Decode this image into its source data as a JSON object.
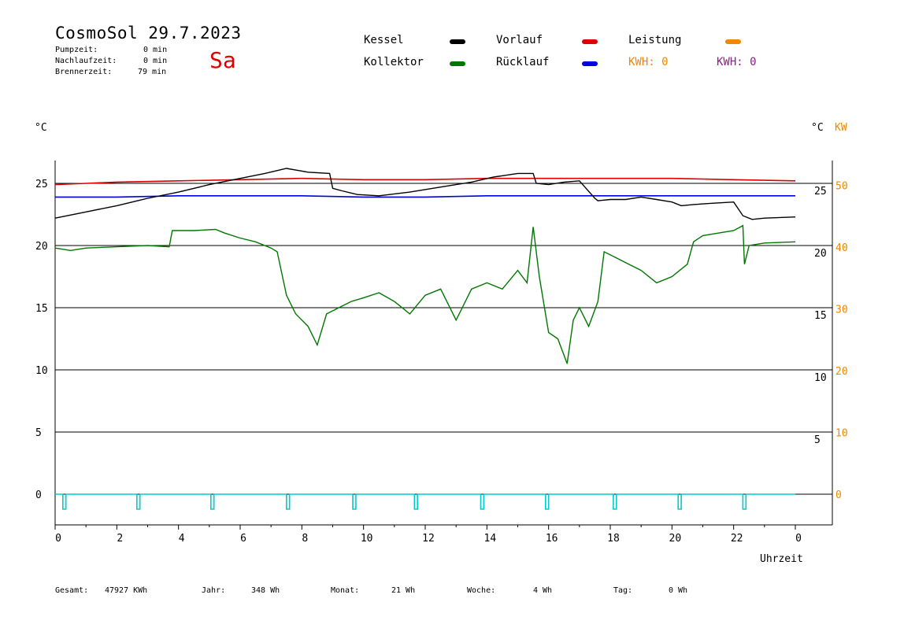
{
  "header": {
    "title": "CosmoSol 29.7.2023",
    "day": "Sa",
    "stats": [
      {
        "label": "Pumpzeit:",
        "value": "0 min"
      },
      {
        "label": "Nachlaufzeit:",
        "value": "0 min"
      },
      {
        "label": "Brennerzeit:",
        "value": "79 min"
      }
    ]
  },
  "legend": {
    "kessel": "Kessel",
    "kollektor": "Kollektor",
    "vorlauf": "Vorlauf",
    "ruecklauf": "Rücklauf",
    "leistung": "Leistung",
    "kwh_orange": "KWH: 0",
    "kwh_purple": "KWH: 0"
  },
  "colors": {
    "kessel": "#000000",
    "kollektor": "#007700",
    "vorlauf": "#dd0000",
    "ruecklauf": "#0000dd",
    "leistung": "#ee8800",
    "kwh_purple": "#882288",
    "pump": "#00cccc"
  },
  "footer": {
    "gesamt_label": "Gesamt:",
    "gesamt_value": "47927 KWh",
    "jahr_label": "Jahr:",
    "jahr_value": "348 Wh",
    "monat_label": "Monat:",
    "monat_value": "21 Wh",
    "woche_label": "Woche:",
    "woche_value": "4 Wh",
    "tag_label": "Tag:",
    "tag_value": "0 Wh"
  },
  "chart_data": {
    "type": "line",
    "xlabel": "Uhrzeit",
    "ylabel_left": "°C",
    "ylabel_right_1": "°C",
    "ylabel_right_2": "KW",
    "x_ticks": [
      "0",
      "2",
      "4",
      "6",
      "8",
      "10",
      "12",
      "14",
      "16",
      "18",
      "20",
      "22",
      "0"
    ],
    "xlim": [
      0,
      24
    ],
    "ylim": [
      -2,
      26.5
    ],
    "y_ticks_left": [
      0,
      5,
      10,
      15,
      20,
      25
    ],
    "y_ticks_right_c": [
      5,
      10,
      15,
      20,
      25
    ],
    "y_ticks_right_kw": [
      0,
      10,
      20,
      30,
      40,
      50
    ],
    "gridlines": [
      0,
      5,
      10,
      15,
      20,
      25
    ],
    "series": [
      {
        "name": "Kessel",
        "color": "#000000",
        "x": [
          0,
          1,
          2,
          3,
          4,
          5,
          6,
          6.8,
          7.5,
          8.2,
          8.9,
          9.0,
          9.3,
          9.8,
          10.5,
          11.5,
          12.5,
          13.5,
          14.2,
          15.0,
          15.5,
          15.6,
          16.0,
          16.5,
          17.0,
          17.5,
          17.6,
          18.0,
          18.5,
          19.0,
          19.5,
          20.0,
          20.3,
          20.7,
          21.3,
          22.0,
          22.3,
          22.6,
          23.0,
          24.0
        ],
        "y": [
          22.2,
          22.7,
          23.2,
          23.8,
          24.3,
          24.9,
          25.4,
          25.8,
          26.2,
          25.9,
          25.8,
          24.6,
          24.4,
          24.1,
          24.0,
          24.3,
          24.7,
          25.1,
          25.5,
          25.8,
          25.8,
          25.0,
          24.9,
          25.1,
          25.2,
          23.8,
          23.6,
          23.7,
          23.7,
          23.9,
          23.7,
          23.5,
          23.2,
          23.3,
          23.4,
          23.5,
          22.4,
          22.1,
          22.2,
          22.3
        ]
      },
      {
        "name": "Vorlauf",
        "color": "#dd0000",
        "x": [
          0,
          1,
          2,
          4,
          6,
          8,
          10,
          12,
          14,
          16,
          18,
          20,
          22,
          24
        ],
        "y": [
          24.9,
          25.0,
          25.1,
          25.2,
          25.3,
          25.4,
          25.3,
          25.3,
          25.4,
          25.4,
          25.4,
          25.4,
          25.3,
          25.2
        ]
      },
      {
        "name": "Rücklauf",
        "color": "#0000dd",
        "x": [
          0,
          2,
          4,
          6,
          8,
          10,
          12,
          14,
          16,
          18,
          20,
          22,
          24
        ],
        "y": [
          23.9,
          23.9,
          24.0,
          24.0,
          24.0,
          23.9,
          23.9,
          24.0,
          24.0,
          24.0,
          24.0,
          24.0,
          24.0
        ]
      },
      {
        "name": "Kollektor",
        "color": "#007700",
        "x": [
          0,
          0.5,
          1,
          2,
          3,
          3.7,
          3.8,
          4.5,
          5.2,
          5.5,
          6.0,
          6.5,
          7.0,
          7.2,
          7.5,
          7.8,
          8.2,
          8.5,
          8.8,
          9.2,
          9.6,
          10.0,
          10.5,
          11.0,
          11.5,
          12.0,
          12.5,
          13.0,
          13.5,
          14.0,
          14.5,
          15.0,
          15.3,
          15.5,
          15.7,
          16.0,
          16.3,
          16.6,
          16.8,
          17.0,
          17.3,
          17.6,
          17.8,
          18.2,
          18.6,
          19.0,
          19.5,
          20.0,
          20.5,
          20.7,
          21.0,
          21.5,
          22.0,
          22.3,
          22.35,
          22.5,
          23.0,
          24.0
        ],
        "y": [
          19.8,
          19.6,
          19.8,
          19.9,
          20.0,
          19.9,
          21.2,
          21.2,
          21.3,
          21.0,
          20.6,
          20.3,
          19.8,
          19.5,
          16.0,
          14.5,
          13.5,
          12.0,
          14.5,
          15.0,
          15.5,
          15.8,
          16.2,
          15.5,
          14.5,
          16.0,
          16.5,
          14.0,
          16.5,
          17.0,
          16.5,
          18.0,
          17.0,
          21.5,
          17.5,
          13.0,
          12.5,
          10.5,
          14.0,
          15.0,
          13.5,
          15.5,
          19.5,
          19.0,
          18.5,
          18.0,
          17.0,
          17.5,
          18.5,
          20.3,
          20.8,
          21.0,
          21.2,
          21.6,
          18.5,
          20.0,
          20.2,
          20.3
        ]
      },
      {
        "name": "Pumpe",
        "color": "#00cccc",
        "x": [
          0,
          0.25,
          0.25,
          0.35,
          0.35,
          2.65,
          2.65,
          2.75,
          2.75,
          5.05,
          5.05,
          5.15,
          5.15,
          7.5,
          7.5,
          7.6,
          7.6,
          9.65,
          9.65,
          9.75,
          9.75,
          11.65,
          11.65,
          11.75,
          11.75,
          13.8,
          13.8,
          13.9,
          13.9,
          15.9,
          15.9,
          16.0,
          16.0,
          18.1,
          18.1,
          18.2,
          18.2,
          20.2,
          20.2,
          20.3,
          20.3,
          22.3,
          22.3,
          22.4,
          22.4,
          24.0
        ],
        "y": [
          0,
          0,
          -1.2,
          -1.2,
          0,
          0,
          -1.2,
          -1.2,
          0,
          0,
          -1.2,
          -1.2,
          0,
          0,
          -1.2,
          -1.2,
          0,
          0,
          -1.2,
          -1.2,
          0,
          0,
          -1.2,
          -1.2,
          0,
          0,
          -1.2,
          -1.2,
          0,
          0,
          -1.2,
          -1.2,
          0,
          0,
          -1.2,
          -1.2,
          0,
          0,
          -1.2,
          -1.2,
          0,
          0,
          -1.2,
          -1.2,
          0,
          0
        ]
      }
    ]
  }
}
